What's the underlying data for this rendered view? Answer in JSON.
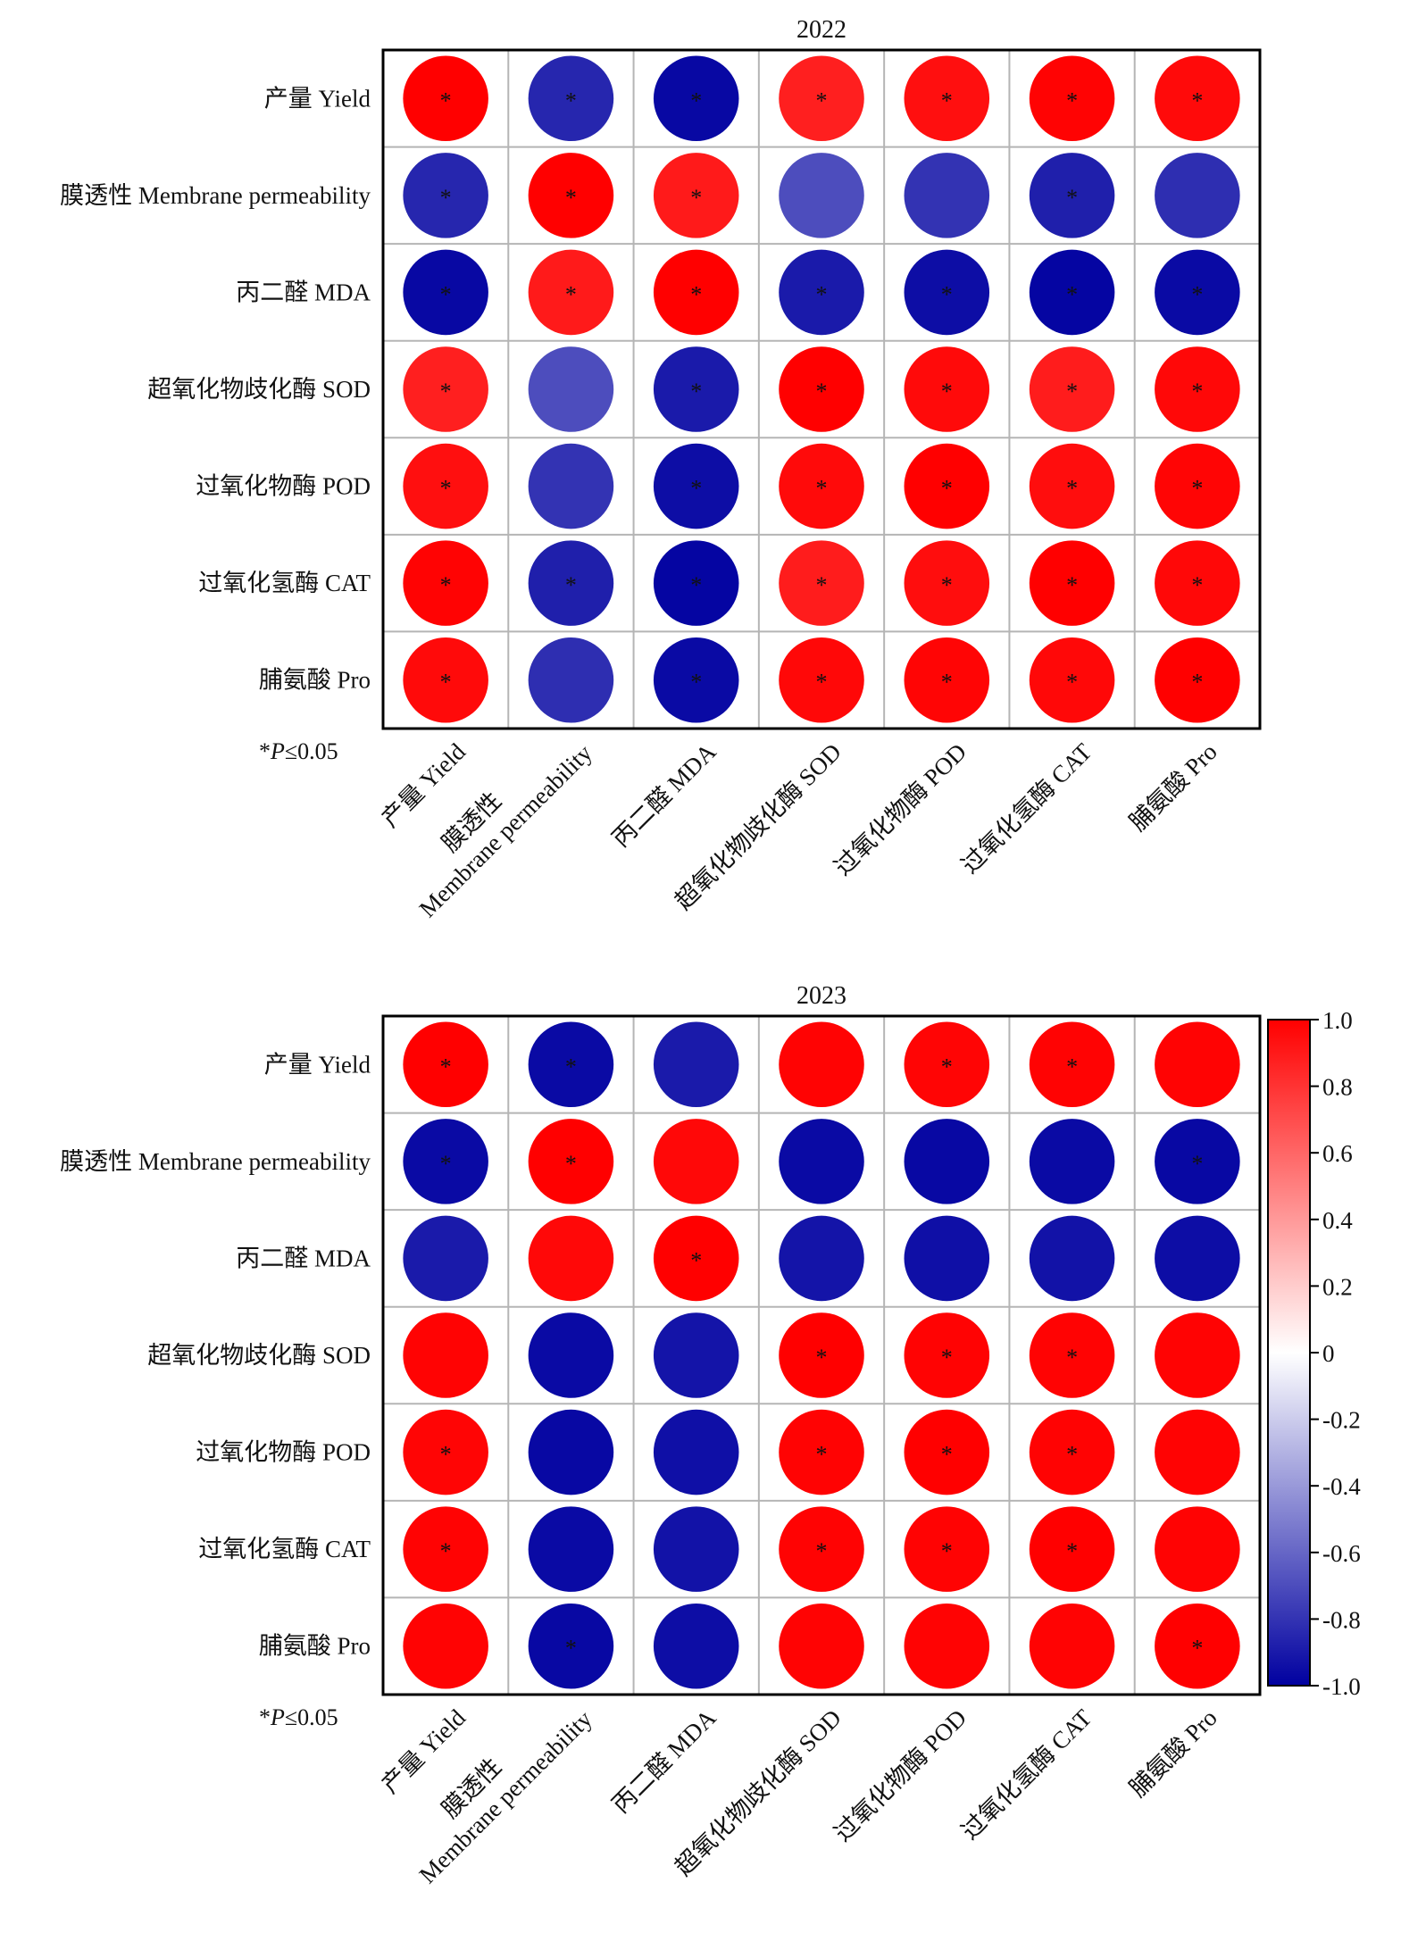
{
  "chart_data": [
    {
      "type": "heatmap",
      "title": "2022",
      "rows": [
        "产量 Yield",
        "膜透性 Membrane permeability",
        "丙二醛 MDA",
        "超氧化物歧化酶 SOD",
        "过氧化物酶 POD",
        "过氧化氢酶 CAT",
        "脯氨酸 Pro"
      ],
      "columns": [
        [
          "产量 Yield"
        ],
        [
          "膜透性",
          "Membrane permeability"
        ],
        [
          "丙二醛 MDA"
        ],
        [
          "超氧化物歧化酶 SOD"
        ],
        [
          "过氧化物酶 POD"
        ],
        [
          "过氧化氢酶 CAT"
        ],
        [
          "脯氨酸 Pro"
        ]
      ],
      "values": [
        [
          1.0,
          -0.85,
          -0.97,
          0.88,
          0.94,
          0.99,
          0.96
        ],
        [
          -0.85,
          1.0,
          0.9,
          -0.7,
          -0.8,
          -0.88,
          -0.82
        ],
        [
          -0.97,
          0.9,
          1.0,
          -0.9,
          -0.95,
          -0.98,
          -0.96
        ],
        [
          0.88,
          -0.7,
          -0.9,
          1.0,
          0.96,
          0.89,
          0.97
        ],
        [
          0.94,
          -0.8,
          -0.95,
          0.96,
          1.0,
          0.95,
          0.98
        ],
        [
          0.99,
          -0.88,
          -0.98,
          0.89,
          0.95,
          1.0,
          0.97
        ],
        [
          0.96,
          -0.82,
          -0.96,
          0.97,
          0.98,
          0.97,
          1.0
        ]
      ],
      "significant": [
        [
          true,
          true,
          true,
          true,
          true,
          true,
          true
        ],
        [
          true,
          true,
          true,
          false,
          false,
          true,
          false
        ],
        [
          true,
          true,
          true,
          true,
          true,
          true,
          true
        ],
        [
          true,
          false,
          true,
          true,
          true,
          true,
          true
        ],
        [
          true,
          false,
          true,
          true,
          true,
          true,
          true
        ],
        [
          true,
          true,
          true,
          true,
          true,
          true,
          true
        ],
        [
          true,
          false,
          true,
          true,
          true,
          true,
          true
        ]
      ],
      "note": "*P≤0.05"
    },
    {
      "type": "heatmap",
      "title": "2023",
      "rows": [
        "产量 Yield",
        "膜透性 Membrane permeability",
        "丙二醛 MDA",
        "超氧化物歧化酶 SOD",
        "过氧化物酶 POD",
        "过氧化氢酶 CAT",
        "脯氨酸 Pro"
      ],
      "columns": [
        [
          "产量 Yield"
        ],
        [
          "膜透性",
          "Membrane permeability"
        ],
        [
          "丙二醛 MDA"
        ],
        [
          "超氧化物歧化酶 SOD"
        ],
        [
          "过氧化物酶 POD"
        ],
        [
          "过氧化氢酶 CAT"
        ],
        [
          "脯氨酸 Pro"
        ]
      ],
      "values": [
        [
          1.0,
          -0.96,
          -0.9,
          0.99,
          0.98,
          0.99,
          0.99
        ],
        [
          -0.96,
          1.0,
          0.97,
          -0.96,
          -0.97,
          -0.96,
          -0.97
        ],
        [
          -0.9,
          0.97,
          1.0,
          -0.92,
          -0.94,
          -0.93,
          -0.95
        ],
        [
          0.99,
          -0.96,
          -0.92,
          1.0,
          0.99,
          0.99,
          0.99
        ],
        [
          0.98,
          -0.97,
          -0.94,
          0.99,
          1.0,
          0.99,
          0.99
        ],
        [
          0.99,
          -0.96,
          -0.93,
          0.99,
          0.99,
          1.0,
          0.99
        ],
        [
          0.99,
          -0.97,
          -0.95,
          0.99,
          0.99,
          0.99,
          1.0
        ]
      ],
      "significant": [
        [
          true,
          true,
          false,
          false,
          true,
          true,
          false
        ],
        [
          true,
          true,
          false,
          false,
          false,
          false,
          true
        ],
        [
          false,
          false,
          true,
          false,
          false,
          false,
          false
        ],
        [
          false,
          false,
          false,
          true,
          true,
          true,
          false
        ],
        [
          true,
          false,
          false,
          true,
          true,
          true,
          false
        ],
        [
          true,
          false,
          false,
          true,
          true,
          true,
          false
        ],
        [
          false,
          true,
          false,
          false,
          false,
          false,
          true
        ]
      ],
      "note": "*P≤0.05"
    }
  ],
  "colorbar": {
    "min": -1.0,
    "max": 1.0,
    "ticks": [
      "1.0",
      "0.8",
      "0.6",
      "0.4",
      "0.2",
      "0",
      "-0.2",
      "-0.4",
      "-0.6",
      "-0.8",
      "-1.0"
    ],
    "colors": {
      "positive": "#ff0000",
      "zero": "#ffffff",
      "negative": "#0000a0"
    }
  },
  "marker": "*",
  "note_parts": {
    "prefix": "*",
    "italic": "P",
    "suffix": "≤0.05"
  }
}
